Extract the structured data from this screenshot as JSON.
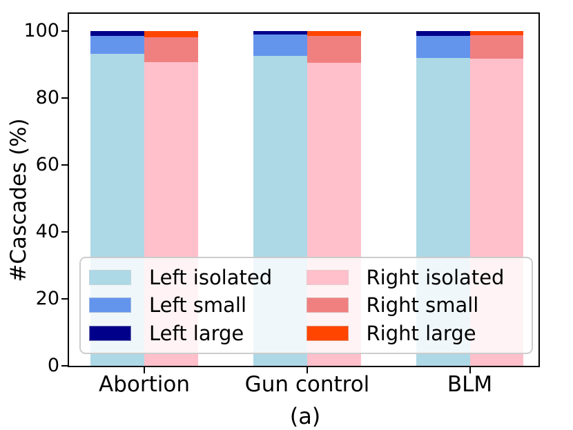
{
  "figure": {
    "background_color": "#ffffff",
    "text_color": "#000000"
  },
  "chart_data": {
    "type": "bar",
    "stacked": true,
    "orientation": "vertical",
    "title": "",
    "caption": "(a)",
    "ylabel": "#Cascades (%)",
    "xlabel": "",
    "ylim": [
      0,
      105
    ],
    "yticks": [
      0,
      20,
      40,
      60,
      80,
      100
    ],
    "grid": false,
    "categories": [
      "Abortion",
      "Gun control",
      "BLM"
    ],
    "groups": [
      "left",
      "right"
    ],
    "legend_position": "lower center inside axes, 2 columns, semi-transparent white box",
    "series": [
      {
        "name": "Left isolated",
        "group": "left",
        "color": "#ADD8E6",
        "values": [
          93.2,
          92.6,
          91.9
        ]
      },
      {
        "name": "Left small",
        "group": "left",
        "color": "#6495ED",
        "values": [
          5.3,
          6.4,
          6.7
        ]
      },
      {
        "name": "Left large",
        "group": "left",
        "color": "#00008B",
        "values": [
          1.5,
          1.0,
          1.4
        ]
      },
      {
        "name": "Right isolated",
        "group": "right",
        "color": "#FFC0CB",
        "values": [
          90.7,
          90.5,
          91.8
        ]
      },
      {
        "name": "Right small",
        "group": "right",
        "color": "#F08080",
        "values": [
          7.4,
          8.0,
          7.0
        ]
      },
      {
        "name": "Right large",
        "group": "right",
        "color": "#FF4500",
        "values": [
          1.9,
          1.5,
          1.2
        ]
      }
    ]
  }
}
